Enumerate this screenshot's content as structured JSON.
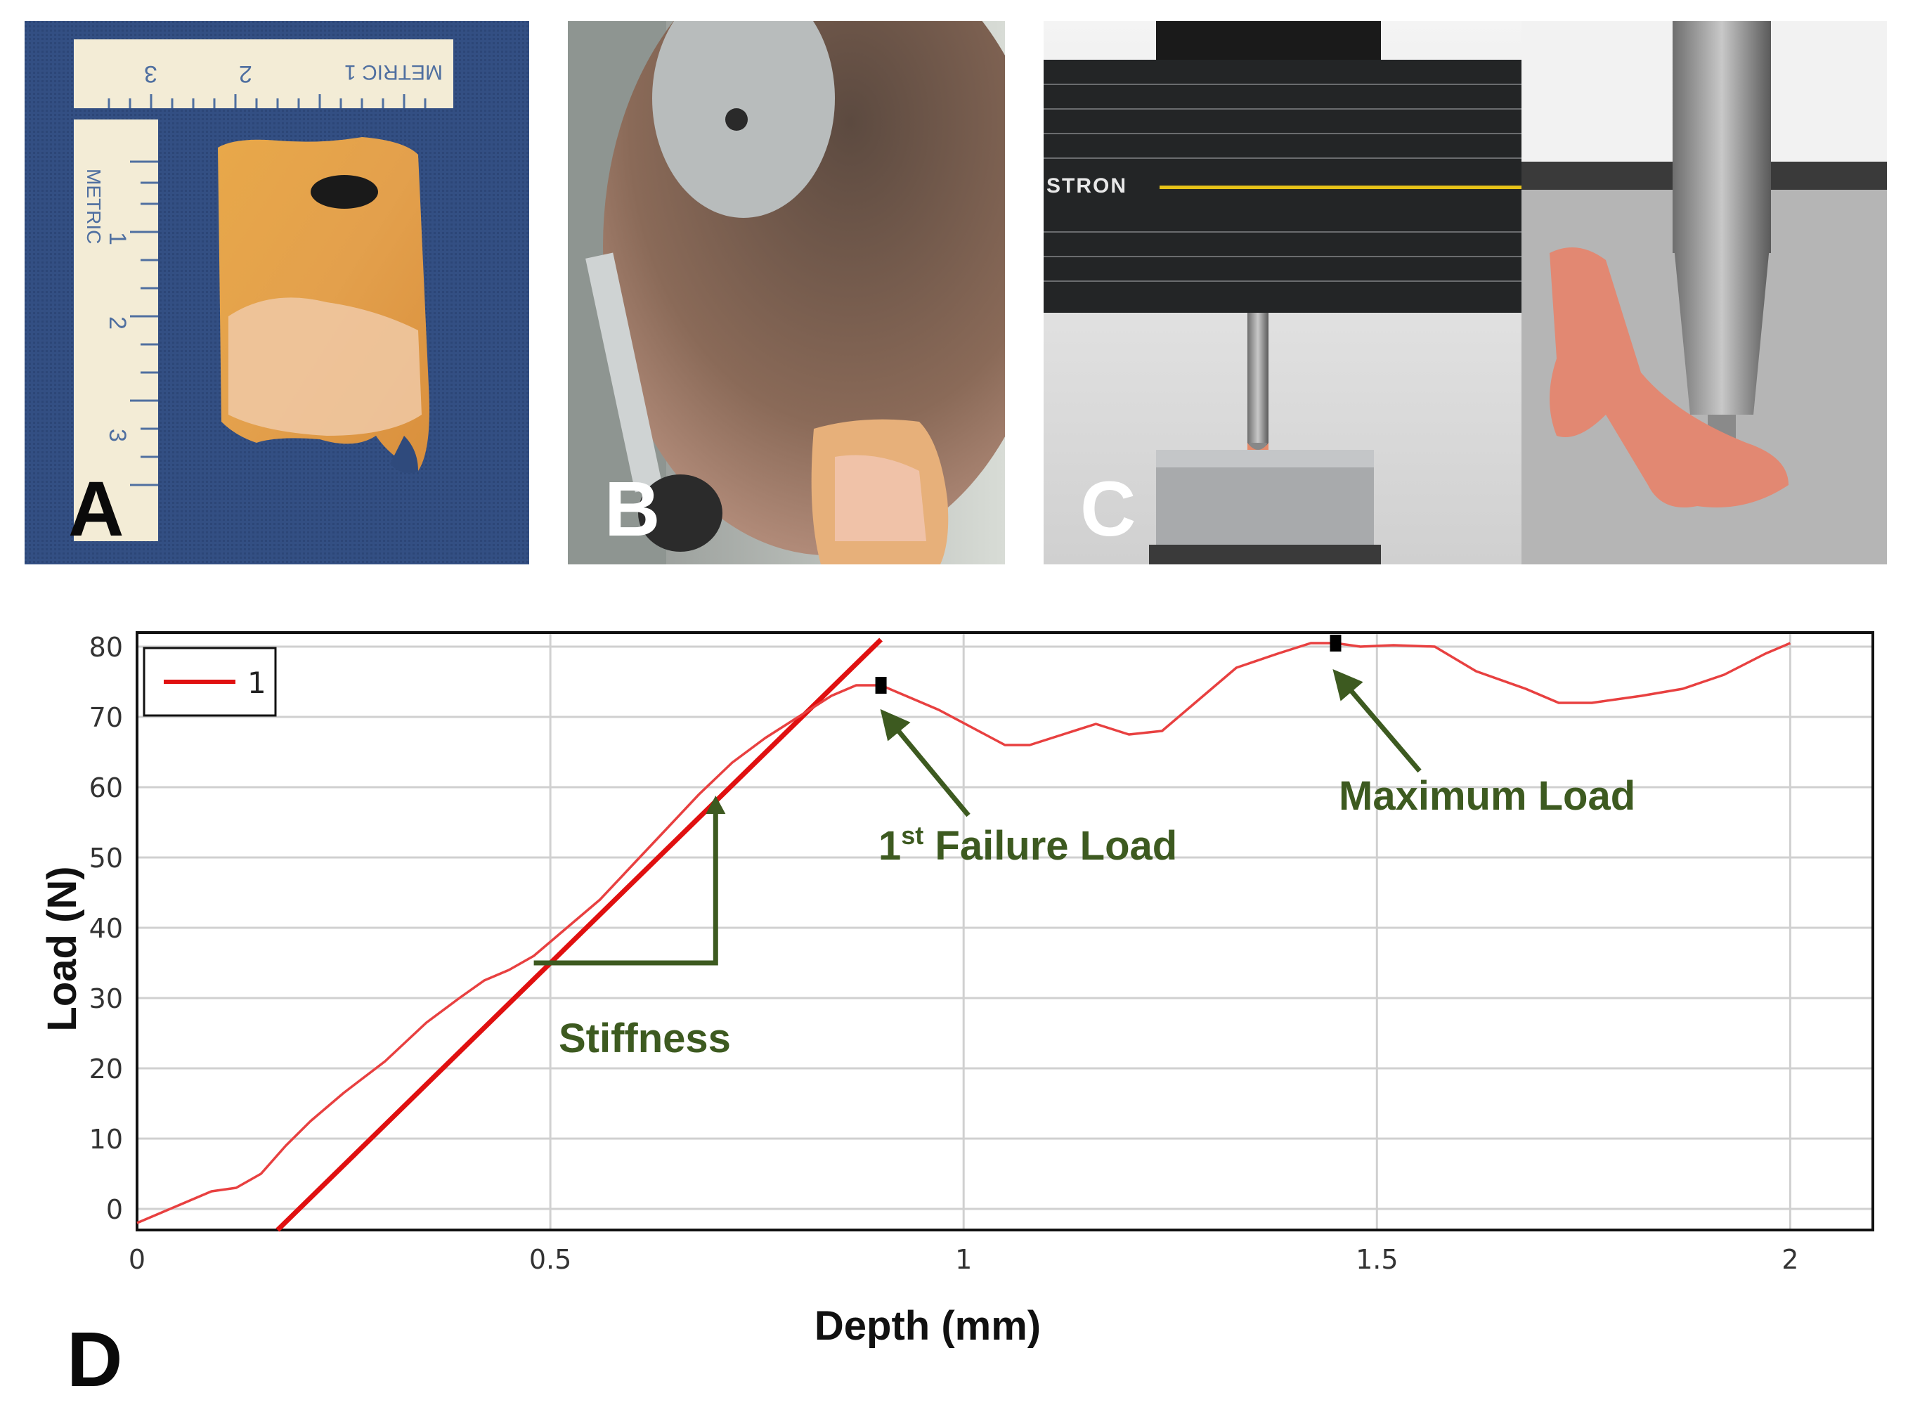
{
  "panels": {
    "a_label": "A",
    "b_label": "B",
    "c_label": "C",
    "d_label": "D",
    "ruler_horizontal_text": "METRIC 1",
    "ruler_horizontal_numbers": [
      "1",
      "2",
      "3"
    ],
    "ruler_vertical_text": "METRIC",
    "ruler_vertical_numbers": [
      "1",
      "2",
      "3"
    ],
    "instron_text": "INSTRON"
  },
  "colors": {
    "fit_line": "#e01010",
    "curve": "#e84040",
    "annotation": "#3d5a20",
    "grid": "#d0d0d0"
  },
  "chart_data": {
    "type": "line",
    "xlabel": "Depth (mm)",
    "ylabel": "Load (N)",
    "xlim": [
      0,
      2.1
    ],
    "ylim": [
      -3,
      82
    ],
    "xticks": [
      0,
      0.5,
      1,
      1.5,
      2
    ],
    "xtick_labels": [
      "0",
      "0.5",
      "1",
      "1.5",
      "2"
    ],
    "yticks": [
      0,
      10,
      20,
      30,
      40,
      50,
      60,
      70,
      80
    ],
    "ytick_labels": [
      "0",
      "10",
      "20",
      "30",
      "40",
      "50",
      "60",
      "70",
      "80"
    ],
    "legend": {
      "position": "top-left",
      "entries": [
        "1"
      ]
    },
    "series": [
      {
        "name": "1",
        "x": [
          0.0,
          0.03,
          0.06,
          0.09,
          0.12,
          0.15,
          0.18,
          0.21,
          0.25,
          0.3,
          0.35,
          0.39,
          0.42,
          0.45,
          0.48,
          0.52,
          0.56,
          0.6,
          0.64,
          0.68,
          0.72,
          0.76,
          0.8,
          0.84,
          0.87,
          0.9,
          0.93,
          0.97,
          1.01,
          1.05,
          1.08,
          1.12,
          1.16,
          1.2,
          1.24,
          1.28,
          1.33,
          1.38,
          1.42,
          1.45,
          1.48,
          1.52,
          1.57,
          1.62,
          1.68,
          1.72,
          1.76,
          1.82,
          1.87,
          1.92,
          1.97,
          2.0
        ],
        "y": [
          -2,
          -0.5,
          1,
          2.5,
          3,
          5,
          9,
          12.5,
          16.5,
          21,
          26.5,
          30,
          32.5,
          34,
          36,
          40,
          44,
          49,
          54,
          59,
          63.5,
          67,
          70,
          73,
          74.5,
          74.5,
          73,
          71,
          68.5,
          66,
          66,
          67.5,
          69,
          67.5,
          68,
          72,
          77,
          79,
          80.5,
          80.5,
          80,
          80.2,
          80,
          76.5,
          74,
          72,
          72,
          73,
          74,
          76,
          79,
          80.5
        ]
      }
    ],
    "fit_line": {
      "x": [
        0.17,
        0.9
      ],
      "y": [
        -3,
        81
      ]
    },
    "stiffness_triangle": {
      "x": [
        0.48,
        0.7,
        0.7
      ],
      "y": [
        35,
        35,
        58
      ]
    },
    "markers": [
      {
        "name": "1st failure",
        "x": 0.9,
        "y": 74.5
      },
      {
        "name": "maximum",
        "x": 1.45,
        "y": 80.5
      }
    ],
    "annotations": {
      "stiffness": "Stiffness",
      "first_failure_superscript_prefix": "1",
      "first_failure_superscript": "st",
      "first_failure_rest": " Failure Load",
      "maximum_load": "Maximum Load"
    }
  }
}
